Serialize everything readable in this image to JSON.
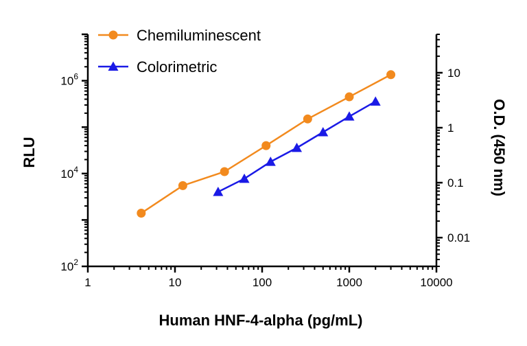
{
  "chart_data": {
    "type": "line",
    "title": "",
    "xlabel": "Human HNF-4-alpha (pg/mL)",
    "ylabel_left": "RLU",
    "ylabel_right": "O.D. (450 nm)",
    "x_scale": "log",
    "xlim": [
      1,
      10000
    ],
    "x_ticks": [
      "1",
      "10",
      "100",
      "1000",
      "10000"
    ],
    "y_left_scale": "log",
    "y_left_lim": [
      100,
      10000000
    ],
    "y_left_ticks": [
      {
        "base": "10",
        "exp": "2"
      },
      {
        "base": "10",
        "exp": "4"
      },
      {
        "base": "10",
        "exp": "6"
      }
    ],
    "y_right_scale": "log",
    "y_right_lim": [
      0.003,
      50
    ],
    "y_right_ticks": [
      "0.01",
      "0.1",
      "1",
      "10"
    ],
    "grid": false,
    "legend_position": "top-left",
    "series": [
      {
        "name": "Chemiluminescent",
        "axis": "left",
        "marker": "circle",
        "color": "#F28A1E",
        "x": [
          4.1,
          12.3,
          37,
          111,
          333,
          1000,
          3000
        ],
        "y": [
          1400,
          5500,
          11000,
          40000,
          150000,
          450000,
          1350000
        ]
      },
      {
        "name": "Colorimetric",
        "axis": "right",
        "marker": "triangle",
        "color": "#1A1AE6",
        "x": [
          31.25,
          62.5,
          125,
          250,
          500,
          1000,
          2000
        ],
        "y": [
          0.068,
          0.118,
          0.24,
          0.43,
          0.83,
          1.6,
          3.0
        ]
      }
    ]
  }
}
